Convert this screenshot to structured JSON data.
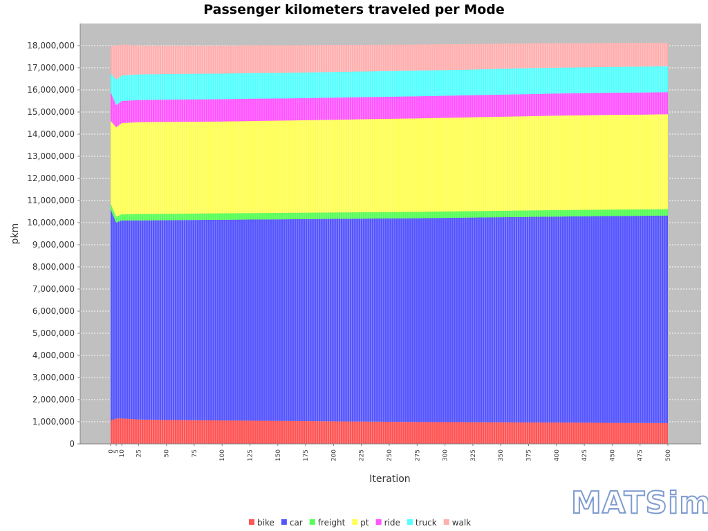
{
  "logo": {
    "text": "MATSim"
  },
  "colors": {
    "plot_background": "#c0c0c0",
    "gridline": "#ffffff",
    "axis_line": "#808080",
    "logo_stroke": "#7d9bd0"
  },
  "chart_data": {
    "type": "area",
    "stacked": true,
    "title": "Passenger kilometers traveled per Mode",
    "xlabel": "Iteration",
    "ylabel": "pkm",
    "ylim": [
      0,
      18000000
    ],
    "yticks": [
      0,
      1000000,
      2000000,
      3000000,
      4000000,
      5000000,
      6000000,
      7000000,
      8000000,
      9000000,
      10000000,
      11000000,
      12000000,
      13000000,
      14000000,
      15000000,
      16000000,
      17000000,
      18000000
    ],
    "ytick_labels": [
      "0",
      "1,000,000",
      "2,000,000",
      "3,000,000",
      "4,000,000",
      "5,000,000",
      "6,000,000",
      "7,000,000",
      "8,000,000",
      "9,000,000",
      "10,000,000",
      "11,000,000",
      "12,000,000",
      "13,000,000",
      "14,000,000",
      "15,000,000",
      "16,000,000",
      "17,000,000",
      "18,000,000"
    ],
    "x": [
      0,
      5,
      10,
      25,
      50,
      75,
      100,
      125,
      150,
      175,
      200,
      225,
      250,
      275,
      300,
      325,
      350,
      375,
      400,
      425,
      450,
      475,
      500
    ],
    "x_tick_labels": [
      "0",
      "5",
      "10",
      "25",
      "50",
      "75",
      "100",
      "125",
      "150",
      "175",
      "200",
      "225",
      "250",
      "275",
      "300",
      "325",
      "350",
      "375",
      "400",
      "425",
      "450",
      "475",
      "500"
    ],
    "grid": true,
    "legend_position": "bottom",
    "series": [
      {
        "name": "bike",
        "color": "#ff5555",
        "values": [
          1050000,
          1150000,
          1150000,
          1100000,
          1080000,
          1070000,
          1060000,
          1050000,
          1040000,
          1030000,
          1020000,
          1010000,
          1000000,
          990000,
          985000,
          980000,
          975000,
          970000,
          965000,
          960000,
          950000,
          945000,
          940000
        ]
      },
      {
        "name": "car",
        "color": "#5555ff",
        "values": [
          9550000,
          8850000,
          8950000,
          9000000,
          9030000,
          9050000,
          9070000,
          9090000,
          9110000,
          9130000,
          9150000,
          9170000,
          9190000,
          9210000,
          9230000,
          9250000,
          9270000,
          9290000,
          9310000,
          9330000,
          9350000,
          9365000,
          9380000
        ]
      },
      {
        "name": "freight",
        "color": "#55ff55",
        "values": [
          260000,
          270000,
          280000,
          290000,
          290000,
          290000,
          290000,
          290000,
          290000,
          290000,
          290000,
          290000,
          290000,
          290000,
          290000,
          290000,
          290000,
          290000,
          290000,
          290000,
          290000,
          290000,
          290000
        ]
      },
      {
        "name": "pt",
        "color": "#ffff55",
        "values": [
          3740000,
          4040000,
          4120000,
          4150000,
          4150000,
          4150000,
          4150000,
          4160000,
          4170000,
          4180000,
          4190000,
          4200000,
          4210000,
          4220000,
          4230000,
          4240000,
          4250000,
          4260000,
          4270000,
          4270000,
          4280000,
          4280000,
          4290000
        ]
      },
      {
        "name": "ride",
        "color": "#ff55ff",
        "values": [
          1300000,
          1000000,
          1000000,
          1000000,
          1010000,
          1010000,
          1010000,
          1010000,
          1000000,
          1000000,
          1000000,
          1000000,
          1000000,
          1000000,
          1000000,
          1000000,
          1000000,
          1000000,
          1000000,
          1000000,
          1000000,
          1000000,
          1000000
        ]
      },
      {
        "name": "truck",
        "color": "#55ffff",
        "values": [
          850000,
          1150000,
          1150000,
          1160000,
          1160000,
          1160000,
          1160000,
          1160000,
          1160000,
          1160000,
          1160000,
          1160000,
          1160000,
          1160000,
          1160000,
          1160000,
          1170000,
          1170000,
          1170000,
          1170000,
          1170000,
          1170000,
          1170000
        ]
      },
      {
        "name": "walk",
        "color": "#ffafaf",
        "values": [
          1250000,
          1540000,
          1400000,
          1300000,
          1280000,
          1270000,
          1260000,
          1250000,
          1240000,
          1230000,
          1220000,
          1200000,
          1190000,
          1180000,
          1165000,
          1150000,
          1135000,
          1120000,
          1105000,
          1090000,
          1080000,
          1070000,
          1060000
        ]
      }
    ]
  }
}
